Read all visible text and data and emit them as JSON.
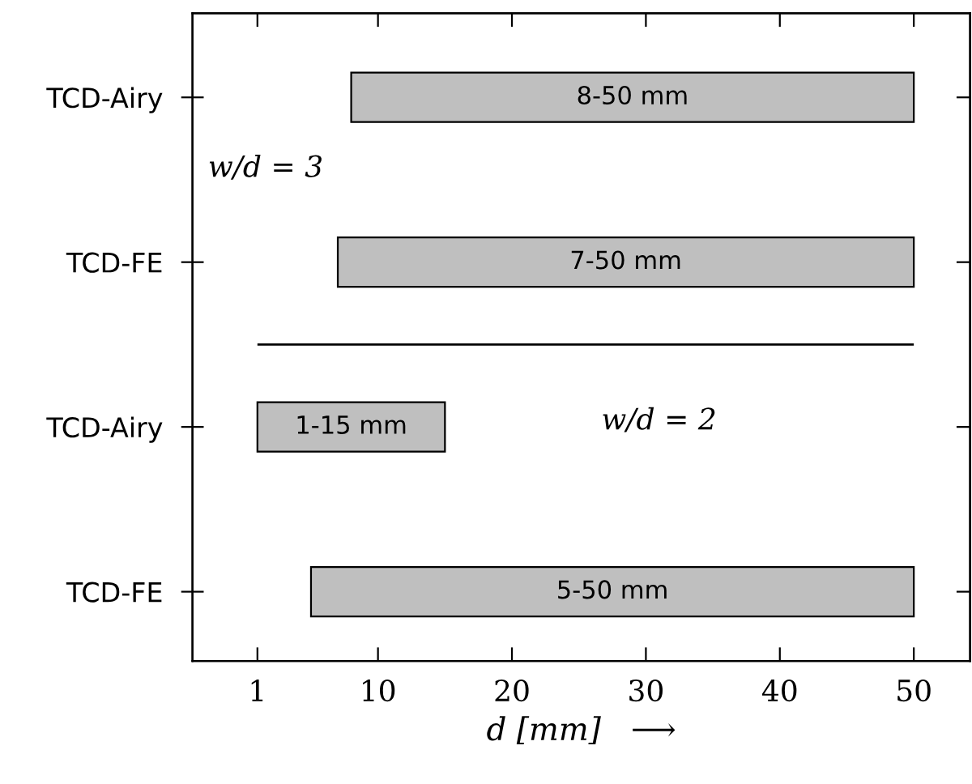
{
  "chart_data": {
    "type": "bar",
    "orientation": "horizontal",
    "categories": [
      "TCD-Airy",
      "TCD-FE",
      "TCD-Airy",
      "TCD-FE"
    ],
    "series": [
      {
        "color": "#bfbfbf",
        "base": [
          8,
          7,
          1,
          5
        ],
        "values": [
          42,
          43,
          14,
          45
        ],
        "value_labels": [
          "8-50 mm",
          "7-50 mm",
          "1-15 mm",
          "5-50 mm"
        ]
      }
    ],
    "xlabel": "d [mm]   ⟶",
    "xlim": [
      -3.85,
      54.2
    ],
    "xticks": [
      1,
      10,
      20,
      30,
      40,
      50
    ],
    "annotations": [
      "w/d = 3",
      "w/d = 2"
    ],
    "grid": false,
    "legend": false
  }
}
